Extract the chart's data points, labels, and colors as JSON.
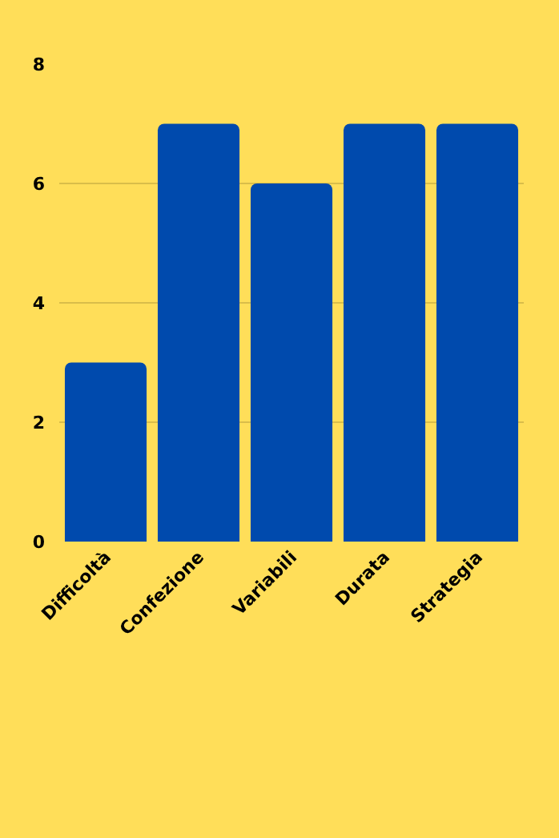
{
  "chart_data": {
    "type": "bar",
    "categories": [
      "Difficoltà",
      "Confezione",
      "Variabili",
      "Durata",
      "Strategia"
    ],
    "values": [
      3,
      7,
      6,
      7,
      7
    ],
    "color": "#004aad",
    "ylim": [
      0,
      8
    ],
    "yticks": [
      0,
      2,
      4,
      6,
      8
    ],
    "grid": "y",
    "legend": false
  }
}
